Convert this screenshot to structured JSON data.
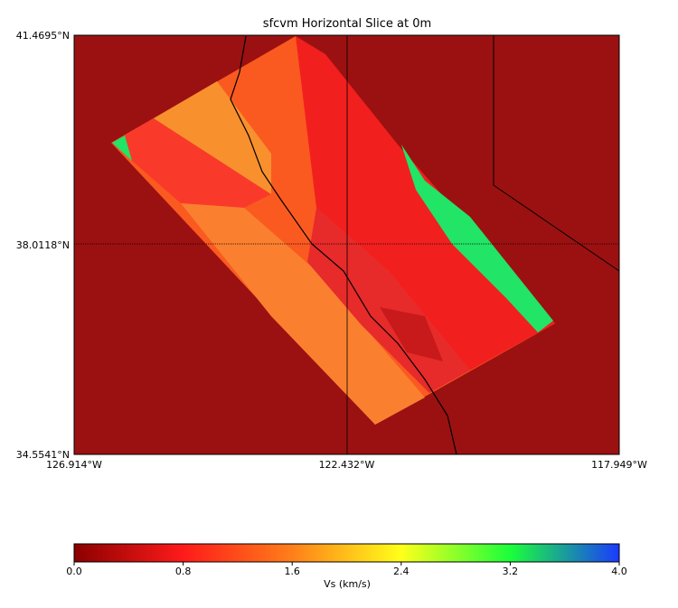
{
  "map": {
    "title": "sfcvm Horizontal Slice at 0m",
    "lon_labels": [
      "126.914°W",
      "122.432°W",
      "117.949°W"
    ],
    "lat_labels": [
      "41.4695°N",
      "38.0118°N",
      "34.5541°N"
    ]
  },
  "colorbar": {
    "label": "Vs (km/s)",
    "lim": [
      0,
      4
    ],
    "ticks": [
      {
        "value": 0,
        "label": "0.0"
      },
      0.8,
      1.6,
      2.4,
      3.2,
      {
        "value": 4,
        "label": "4.0"
      }
    ],
    "colors": [
      "#8b0000",
      "#ff1a1a",
      "#ff7f1a",
      "#ffff1a",
      "#1aff3a",
      "#1a3aff"
    ]
  }
}
